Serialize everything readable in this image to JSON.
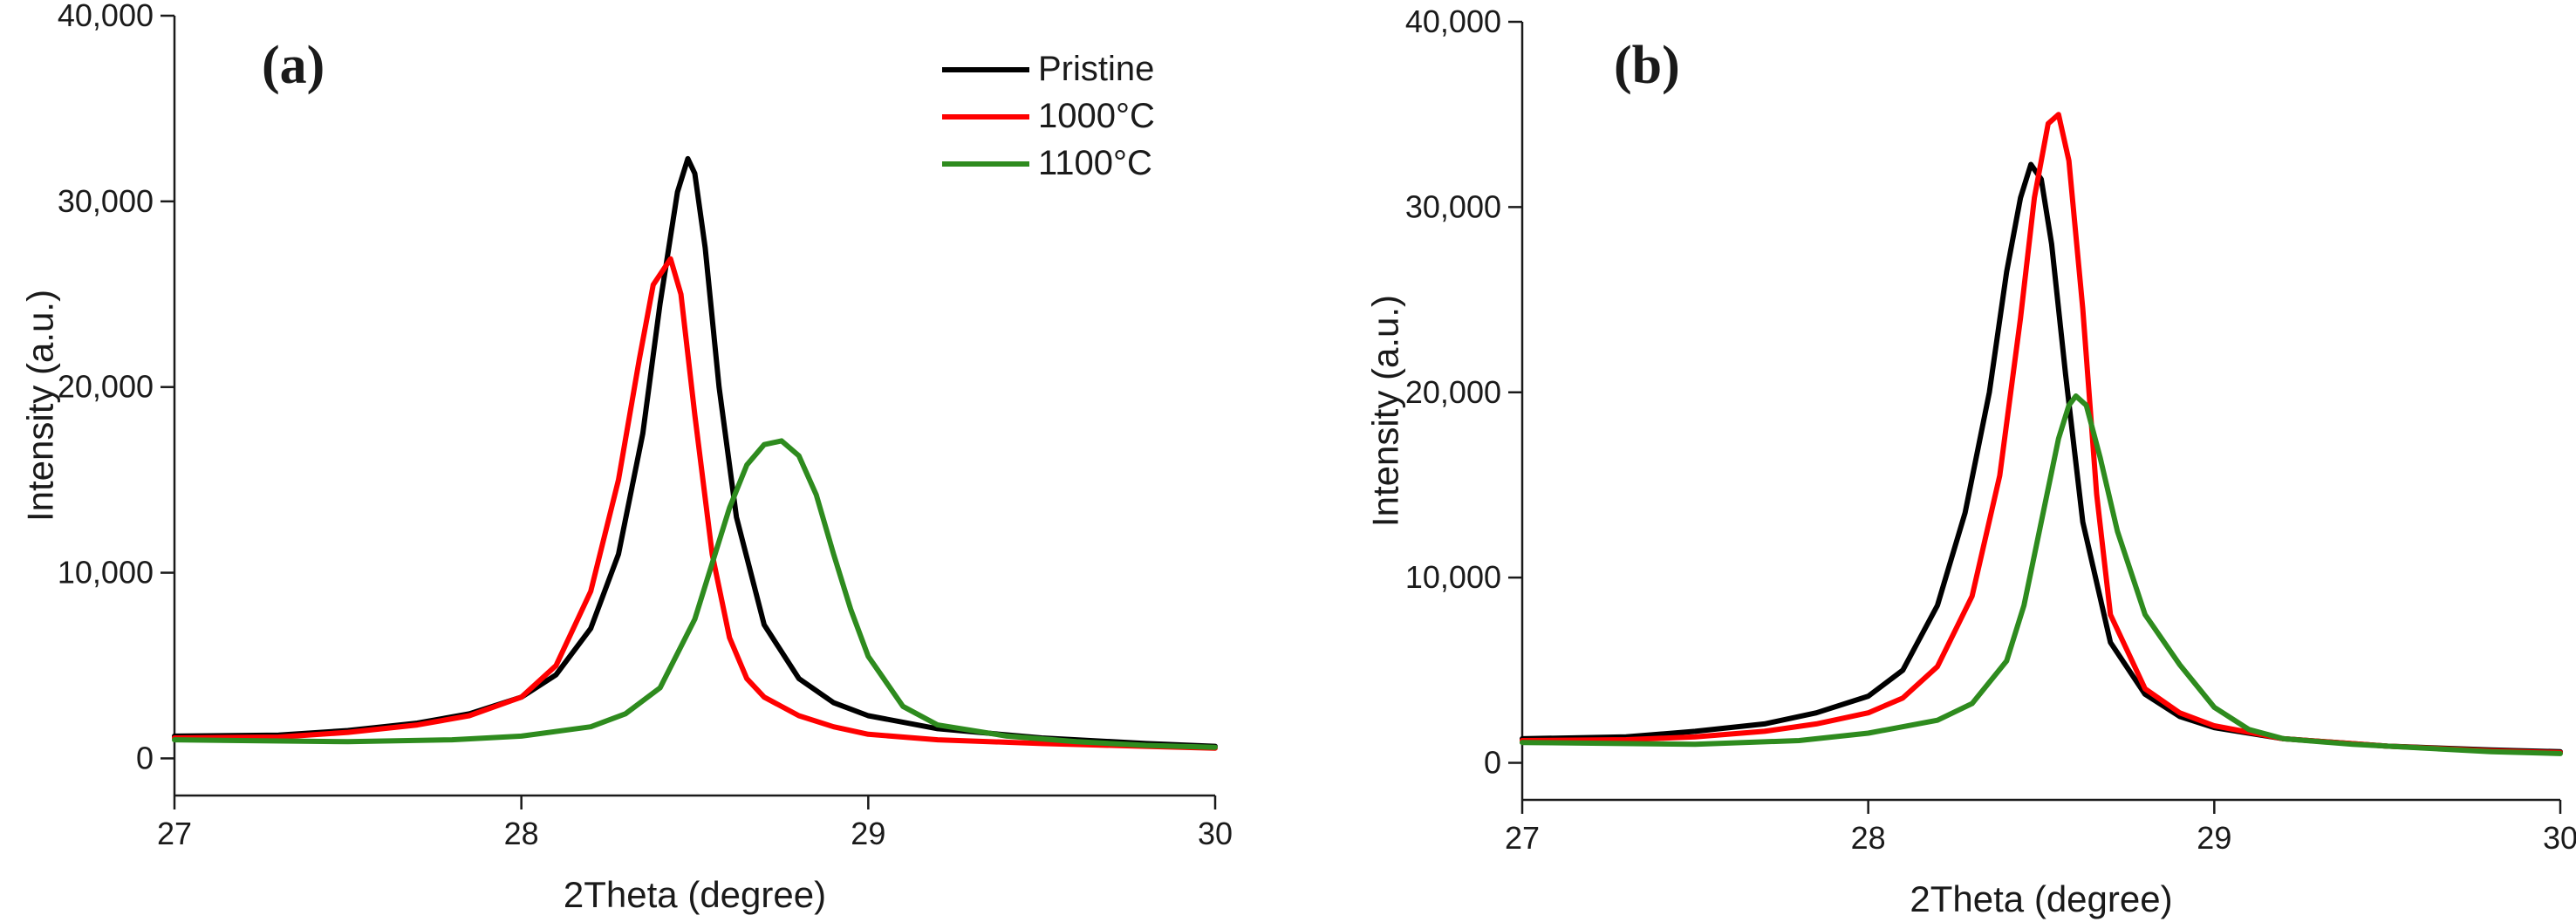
{
  "chart_data": [
    {
      "type": "line",
      "panel_label": "(a)",
      "xlabel": "2Theta (degree)",
      "ylabel": "Intensity (a.u.)",
      "xlim": [
        27,
        30
      ],
      "ylim": [
        -2000,
        40000
      ],
      "x_ticks": [
        27,
        28,
        29,
        30
      ],
      "x_tick_labels": [
        "27",
        "28",
        "29",
        "30"
      ],
      "y_ticks": [
        0,
        10000,
        20000,
        30000,
        40000
      ],
      "y_tick_labels": [
        "0",
        "10,000",
        "20,000",
        "30,000",
        "40,000"
      ],
      "legend": {
        "position": "top-right",
        "entries": [
          "Pristine",
          "1000°C",
          "1100°C"
        ]
      },
      "series": [
        {
          "name": "Pristine",
          "color": "#000000",
          "x": [
            27.0,
            27.3,
            27.5,
            27.7,
            27.85,
            28.0,
            28.1,
            28.2,
            28.28,
            28.35,
            28.4,
            28.45,
            28.48,
            28.5,
            28.53,
            28.57,
            28.62,
            28.7,
            28.8,
            28.9,
            29.0,
            29.2,
            29.5,
            29.8,
            30.0
          ],
          "y": [
            1200,
            1250,
            1500,
            1900,
            2400,
            3300,
            4500,
            7000,
            11000,
            17500,
            24500,
            30500,
            32300,
            31500,
            27500,
            20000,
            13000,
            7200,
            4300,
            3000,
            2300,
            1600,
            1100,
            800,
            650
          ]
        },
        {
          "name": "1000°C",
          "color": "#ff0000",
          "x": [
            27.0,
            27.3,
            27.5,
            27.7,
            27.85,
            28.0,
            28.1,
            28.2,
            28.28,
            28.34,
            28.38,
            28.43,
            28.46,
            28.5,
            28.55,
            28.6,
            28.65,
            28.7,
            28.8,
            28.9,
            29.0,
            29.2,
            29.5,
            29.8,
            30.0
          ],
          "y": [
            1100,
            1150,
            1400,
            1800,
            2300,
            3300,
            5000,
            9000,
            15000,
            21500,
            25500,
            26900,
            25000,
            18500,
            11000,
            6500,
            4300,
            3300,
            2300,
            1700,
            1300,
            1000,
            800,
            650,
            550
          ]
        },
        {
          "name": "1100°C",
          "color": "#2e8b1e",
          "x": [
            27.0,
            27.5,
            27.8,
            28.0,
            28.2,
            28.3,
            28.4,
            28.5,
            28.55,
            28.6,
            28.65,
            28.7,
            28.75,
            28.8,
            28.85,
            28.9,
            28.95,
            29.0,
            29.1,
            29.2,
            29.4,
            29.6,
            29.8,
            30.0
          ],
          "y": [
            1000,
            900,
            1000,
            1200,
            1700,
            2400,
            3800,
            7500,
            10500,
            13500,
            15800,
            16900,
            17100,
            16300,
            14200,
            11000,
            8000,
            5500,
            2800,
            1800,
            1200,
            900,
            700,
            600
          ]
        }
      ]
    },
    {
      "type": "line",
      "panel_label": "(b)",
      "xlabel": "2Theta (degree)",
      "ylabel": "Intensity (a.u.)",
      "xlim": [
        27,
        30
      ],
      "ylim": [
        -2000,
        40000
      ],
      "x_ticks": [
        27,
        28,
        29,
        30
      ],
      "x_tick_labels": [
        "27",
        "28",
        "29",
        "30"
      ],
      "y_ticks": [
        0,
        10000,
        20000,
        30000,
        40000
      ],
      "y_tick_labels": [
        "0",
        "10,000",
        "20,000",
        "30,000",
        "40,000"
      ],
      "series": [
        {
          "color": "#000000",
          "x": [
            27.0,
            27.3,
            27.5,
            27.7,
            27.85,
            28.0,
            28.1,
            28.2,
            28.28,
            28.35,
            28.4,
            28.44,
            28.47,
            28.5,
            28.53,
            28.57,
            28.62,
            28.7,
            28.8,
            28.9,
            29.0,
            29.2,
            29.5,
            29.8,
            30.0
          ],
          "y": [
            1300,
            1400,
            1700,
            2100,
            2700,
            3600,
            5000,
            8500,
            13500,
            20000,
            26500,
            30500,
            32300,
            31500,
            28000,
            21000,
            13000,
            6500,
            3700,
            2500,
            1900,
            1300,
            900,
            700,
            600
          ]
        },
        {
          "color": "#ff0000",
          "x": [
            27.0,
            27.3,
            27.5,
            27.7,
            27.85,
            28.0,
            28.1,
            28.2,
            28.3,
            28.38,
            28.44,
            28.48,
            28.52,
            28.55,
            28.58,
            28.62,
            28.66,
            28.7,
            28.8,
            28.9,
            29.0,
            29.2,
            29.5,
            29.8,
            30.0
          ],
          "y": [
            1200,
            1250,
            1400,
            1700,
            2100,
            2700,
            3500,
            5200,
            9000,
            15500,
            24000,
            30500,
            34500,
            35000,
            32500,
            24500,
            14500,
            8000,
            4000,
            2700,
            2000,
            1300,
            900,
            650,
            550
          ]
        },
        {
          "color": "#2e8b1e",
          "x": [
            27.0,
            27.5,
            27.8,
            28.0,
            28.2,
            28.3,
            28.4,
            28.45,
            28.5,
            28.55,
            28.58,
            28.6,
            28.63,
            28.67,
            28.72,
            28.8,
            28.9,
            29.0,
            29.1,
            29.2,
            29.4,
            29.6,
            29.8,
            30.0
          ],
          "y": [
            1100,
            1000,
            1200,
            1600,
            2300,
            3200,
            5500,
            8500,
            13000,
            17500,
            19300,
            19800,
            19300,
            16500,
            12500,
            8000,
            5300,
            3000,
            1800,
            1300,
            1000,
            800,
            600,
            500
          ]
        }
      ]
    }
  ]
}
